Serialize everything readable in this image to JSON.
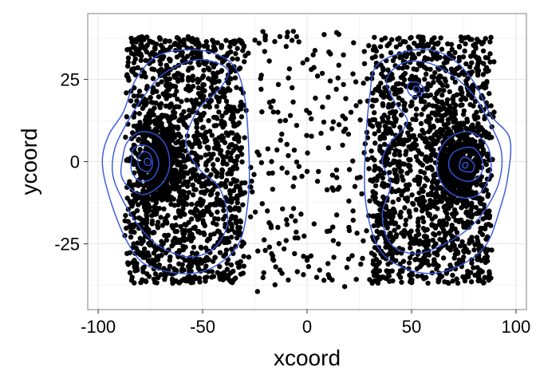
{
  "chart_data": {
    "type": "scatter",
    "title": "",
    "xlabel": "xcoord",
    "ylabel": "ycoord",
    "xlim": [
      -105,
      105
    ],
    "ylim": [
      -45,
      45
    ],
    "x_ticks": [
      -100,
      -50,
      0,
      50,
      100
    ],
    "x_tick_labels": [
      "-100",
      "-50",
      "0",
      "50",
      "100"
    ],
    "y_ticks": [
      -25,
      0,
      25
    ],
    "y_tick_labels": [
      "-25",
      "0",
      "25"
    ],
    "grid": true,
    "legend": "none",
    "colors": {
      "points": "#000000",
      "contours": "#3355dd",
      "grid_major": "#e6e6e6",
      "grid_minor": "#f4f4f4",
      "panel_border": "#808080"
    },
    "series": [
      {
        "kind": "points",
        "note_generation": "dense clusters; representative sample",
        "clusters": [
          {
            "xrange": [
              -88,
              -28
            ],
            "yrange": [
              -37,
              38
            ],
            "density": "very high"
          },
          {
            "xrange": [
              28,
              90
            ],
            "yrange": [
              -37,
              38
            ],
            "density": "very high"
          }
        ],
        "sparse_points": [
          [
            -20,
            37
          ],
          [
            -13,
            38
          ],
          [
            -10,
            35
          ],
          [
            -5,
            38
          ],
          [
            -2,
            30
          ],
          [
            0,
            31
          ],
          [
            2,
            28
          ],
          [
            5,
            26
          ],
          [
            -22,
            22
          ],
          [
            -18,
            18
          ],
          [
            -14,
            15
          ],
          [
            -8,
            14
          ],
          [
            -5,
            11
          ],
          [
            2,
            13
          ],
          [
            8,
            12
          ],
          [
            12,
            10
          ],
          [
            -23,
            2
          ],
          [
            -17,
            0
          ],
          [
            -12,
            -2
          ],
          [
            -6,
            -5
          ],
          [
            0,
            -3
          ],
          [
            5,
            -6
          ],
          [
            12,
            -8
          ],
          [
            20,
            -12
          ],
          [
            -19,
            -15
          ],
          [
            -14,
            -20
          ],
          [
            -10,
            -24
          ],
          [
            -6,
            -28
          ],
          [
            0,
            -30
          ],
          [
            6,
            -33
          ],
          [
            12,
            -36
          ],
          [
            18,
            -38
          ],
          [
            -16,
            -30
          ],
          [
            -15,
            -32
          ],
          [
            -13,
            -33
          ],
          [
            -12,
            -34
          ],
          [
            -9,
            -36
          ],
          [
            -17,
            -28
          ],
          [
            -18,
            -26
          ],
          [
            -20,
            -27
          ],
          [
            10,
            -31
          ],
          [
            15,
            -25
          ],
          [
            20,
            -20
          ],
          [
            22,
            -15
          ],
          [
            24,
            -5
          ],
          [
            17,
            5
          ],
          [
            21,
            15
          ],
          [
            14,
            22
          ]
        ]
      },
      {
        "kind": "contour",
        "name": "",
        "paths": [
          [
            [
              -95,
              8
            ],
            [
              -98,
              0
            ],
            [
              -95,
              -10
            ],
            [
              -88,
              -22
            ],
            [
              -80,
              -30
            ],
            [
              -70,
              -33
            ],
            [
              -55,
              -34
            ],
            [
              -42,
              -31
            ],
            [
              -32,
              -24
            ],
            [
              -28,
              -10
            ],
            [
              -28,
              5
            ],
            [
              -30,
              20
            ],
            [
              -35,
              29
            ],
            [
              -45,
              33
            ],
            [
              -58,
              34
            ],
            [
              -72,
              32
            ],
            [
              -82,
              25
            ],
            [
              -88,
              15
            ],
            [
              -95,
              8
            ]
          ],
          [
            [
              -92,
              4
            ],
            [
              -93,
              -4
            ],
            [
              -88,
              -12
            ],
            [
              -80,
              -20
            ],
            [
              -70,
              -26
            ],
            [
              -56,
              -29
            ],
            [
              -44,
              -26
            ],
            [
              -38,
              -18
            ],
            [
              -42,
              -8
            ],
            [
              -52,
              -2
            ],
            [
              -58,
              6
            ],
            [
              -52,
              16
            ],
            [
              -42,
              22
            ],
            [
              -38,
              28
            ],
            [
              -52,
              31
            ],
            [
              -68,
              27
            ],
            [
              -78,
              20
            ],
            [
              -86,
              12
            ],
            [
              -92,
              4
            ]
          ],
          [
            [
              -88,
              2
            ],
            [
              -89,
              -4
            ],
            [
              -85,
              -8
            ],
            [
              -78,
              -10
            ],
            [
              -70,
              -7
            ],
            [
              -66,
              -2
            ],
            [
              -67,
              4
            ],
            [
              -72,
              8
            ],
            [
              -80,
              9
            ],
            [
              -86,
              6
            ],
            [
              -88,
              2
            ]
          ],
          [
            [
              -84,
              1
            ],
            [
              -84,
              -3
            ],
            [
              -80,
              -6
            ],
            [
              -74,
              -5
            ],
            [
              -71,
              -1
            ],
            [
              -73,
              3
            ],
            [
              -78,
              5
            ],
            [
              -83,
              4
            ],
            [
              -84,
              1
            ]
          ],
          [
            [
              -81,
              1
            ],
            [
              -80,
              -2
            ],
            [
              -76,
              -3
            ],
            [
              -74,
              -1
            ],
            [
              -75,
              2
            ],
            [
              -78,
              3
            ],
            [
              -81,
              1
            ]
          ],
          [
            [
              -78,
              0
            ],
            [
              -77,
              -1
            ],
            [
              -75,
              -1
            ],
            [
              -75,
              0.5
            ],
            [
              -77,
              1
            ],
            [
              -78,
              0
            ]
          ],
          [
            [
              97,
              7
            ],
            [
              96,
              -5
            ],
            [
              92,
              -15
            ],
            [
              86,
              -25
            ],
            [
              75,
              -31
            ],
            [
              60,
              -34
            ],
            [
              45,
              -32
            ],
            [
              34,
              -26
            ],
            [
              28,
              -12
            ],
            [
              28,
              5
            ],
            [
              30,
              20
            ],
            [
              33,
              29
            ],
            [
              45,
              33
            ],
            [
              58,
              34
            ],
            [
              70,
              31
            ],
            [
              80,
              24
            ],
            [
              88,
              14
            ],
            [
              97,
              7
            ]
          ],
          [
            [
              93,
              3
            ],
            [
              92,
              -6
            ],
            [
              86,
              -14
            ],
            [
              78,
              -20
            ],
            [
              66,
              -25
            ],
            [
              52,
              -28
            ],
            [
              40,
              -25
            ],
            [
              36,
              -16
            ],
            [
              40,
              -7
            ],
            [
              36,
              0
            ],
            [
              40,
              6
            ],
            [
              48,
              12
            ],
            [
              42,
              18
            ],
            [
              38,
              25
            ],
            [
              46,
              30
            ],
            [
              58,
              30
            ],
            [
              70,
              26
            ],
            [
              80,
              20
            ],
            [
              88,
              11
            ],
            [
              93,
              3
            ]
          ],
          [
            [
              88,
              1
            ],
            [
              87,
              -5
            ],
            [
              82,
              -10
            ],
            [
              74,
              -11
            ],
            [
              66,
              -8
            ],
            [
              62,
              -2
            ],
            [
              64,
              4
            ],
            [
              70,
              8
            ],
            [
              78,
              9
            ],
            [
              85,
              6
            ],
            [
              88,
              1
            ]
          ],
          [
            [
              84,
              0
            ],
            [
              83,
              -4
            ],
            [
              78,
              -6
            ],
            [
              72,
              -5
            ],
            [
              68,
              -2
            ],
            [
              69,
              2
            ],
            [
              74,
              4
            ],
            [
              80,
              4
            ],
            [
              84,
              0
            ]
          ],
          [
            [
              80,
              -1
            ],
            [
              79,
              -3
            ],
            [
              76,
              -3
            ],
            [
              73,
              -2
            ],
            [
              74,
              1
            ],
            [
              77,
              1
            ],
            [
              80,
              -1
            ]
          ],
          [
            [
              77,
              -1
            ],
            [
              76,
              -2
            ],
            [
              74.5,
              -1.5
            ],
            [
              75,
              -0.5
            ],
            [
              76.5,
              -0.3
            ],
            [
              77,
              -1
            ]
          ],
          [
            [
              48,
              22
            ],
            [
              50,
              20
            ],
            [
              54,
              20
            ],
            [
              56,
              22
            ],
            [
              53,
              24
            ],
            [
              49,
              24
            ],
            [
              48,
              22
            ]
          ],
          [
            [
              51,
              22
            ],
            [
              52,
              21
            ],
            [
              54,
              21.5
            ],
            [
              53,
              22.8
            ],
            [
              51.5,
              22.8
            ],
            [
              51,
              22
            ]
          ]
        ]
      }
    ]
  }
}
